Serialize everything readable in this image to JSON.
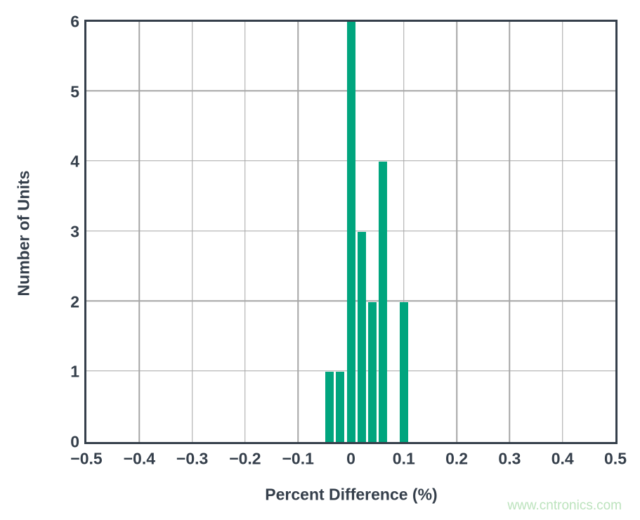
{
  "chart_data": {
    "type": "bar",
    "title": "",
    "xlabel": "Percent Difference (%)",
    "ylabel": "Number of Units",
    "xlim": [
      -0.5,
      0.5
    ],
    "ylim": [
      0,
      6
    ],
    "grid": true,
    "legend": false,
    "bar_color": "#00a57e",
    "bin_width": 0.02,
    "x_ticks": [
      {
        "v": -0.5,
        "label": "−0.5"
      },
      {
        "v": -0.4,
        "label": "−0.4"
      },
      {
        "v": -0.3,
        "label": "−0.3"
      },
      {
        "v": -0.2,
        "label": "−0.2"
      },
      {
        "v": -0.1,
        "label": "−0.1"
      },
      {
        "v": 0,
        "label": "0"
      },
      {
        "v": 0.1,
        "label": "0.1"
      },
      {
        "v": 0.2,
        "label": "0.2"
      },
      {
        "v": 0.3,
        "label": "0.3"
      },
      {
        "v": 0.4,
        "label": "0.4"
      },
      {
        "v": 0.5,
        "label": "0.5"
      }
    ],
    "y_ticks": [
      {
        "v": 0,
        "label": "0"
      },
      {
        "v": 1,
        "label": "1"
      },
      {
        "v": 2,
        "label": "2"
      },
      {
        "v": 3,
        "label": "3"
      },
      {
        "v": 4,
        "label": "4"
      },
      {
        "v": 5,
        "label": "5"
      },
      {
        "v": 6,
        "label": "6"
      }
    ],
    "bars": [
      {
        "x": -0.04,
        "count": 1
      },
      {
        "x": -0.02,
        "count": 1
      },
      {
        "x": 0,
        "count": 6
      },
      {
        "x": 0.02,
        "count": 3
      },
      {
        "x": 0.04,
        "count": 2
      },
      {
        "x": 0.06,
        "count": 4
      },
      {
        "x": 0.08,
        "count": 0
      },
      {
        "x": 0.1,
        "count": 2
      }
    ]
  },
  "watermark": {
    "text": "www.cntronics.com",
    "color": "#bce3bd"
  },
  "colors": {
    "axis": "#353f4b",
    "grid": "#a6a6a6",
    "background": "#ffffff"
  }
}
